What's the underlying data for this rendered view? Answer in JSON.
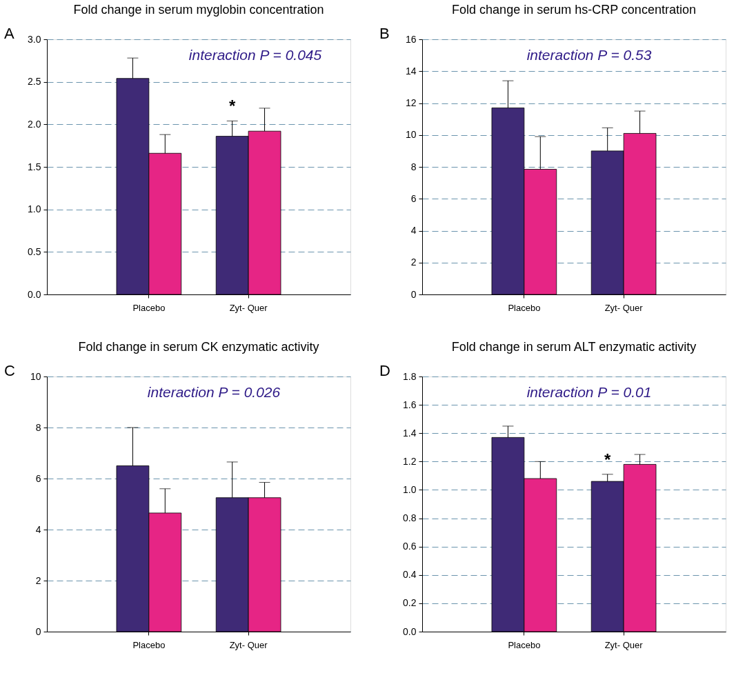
{
  "chart_data": [
    {
      "type": "bar",
      "title": "Fold change in serum myglobin concentration",
      "categories": [
        "Placebo",
        "Zyt- Quer"
      ],
      "series": [
        {
          "color": "#3f2a76",
          "values": [
            2.54,
            1.86
          ],
          "errors": [
            [
              2.54,
              2.78
            ],
            [
              1.86,
              2.04
            ]
          ],
          "value_labels": [
            null,
            "*"
          ]
        },
        {
          "color": "#e62585",
          "values": [
            1.66,
            1.92
          ],
          "errors": [
            [
              1.66,
              1.88
            ],
            [
              1.92,
              2.19
            ]
          ]
        }
      ],
      "ylim": [
        0,
        3
      ],
      "yticks": [
        {
          "value": 0,
          "label": "0.0"
        },
        0.5,
        {
          "value": 1,
          "label": "1.0"
        },
        1.5,
        {
          "value": 2,
          "label": "2.0"
        },
        2.5,
        {
          "value": 3,
          "label": "3.0"
        }
      ],
      "grid": "y",
      "legend": false,
      "annotations": [
        "A",
        "interaction P = 0.045"
      ]
    },
    {
      "type": "bar",
      "title": "Fold change in serum hs-CRP concentration",
      "categories": [
        "Placebo",
        "Zyt- Quer"
      ],
      "series": [
        {
          "color": "#3f2a76",
          "values": [
            11.7,
            9.0
          ],
          "errors": [
            [
              11.7,
              13.4
            ],
            [
              9.0,
              10.45
            ]
          ]
        },
        {
          "color": "#e62585",
          "values": [
            7.85,
            10.1
          ],
          "errors": [
            [
              7.85,
              9.9
            ],
            [
              10.1,
              11.5
            ]
          ]
        }
      ],
      "ylim": [
        0,
        16
      ],
      "yticks": [
        0,
        2,
        4,
        6,
        8,
        10,
        12,
        14,
        16
      ],
      "grid": "y",
      "legend": false,
      "annotations": [
        "B",
        "interaction P = 0.53"
      ]
    },
    {
      "type": "bar",
      "title": "Fold change in serum CK enzymatic activity",
      "categories": [
        "Placebo",
        "Zyt- Quer"
      ],
      "series": [
        {
          "color": "#3f2a76",
          "values": [
            6.5,
            5.25
          ],
          "errors": [
            [
              6.5,
              8.0
            ],
            [
              5.25,
              6.65
            ]
          ]
        },
        {
          "color": "#e62585",
          "values": [
            4.65,
            5.25
          ],
          "errors": [
            [
              4.65,
              5.6
            ],
            [
              5.25,
              5.85
            ]
          ]
        }
      ],
      "ylim": [
        0,
        10
      ],
      "yticks": [
        0,
        2,
        4,
        6,
        8,
        10
      ],
      "grid": "y",
      "legend": false,
      "annotations": [
        "C",
        "interaction P = 0.026"
      ]
    },
    {
      "type": "bar",
      "title": "Fold change in serum ALT enzymatic activity",
      "categories": [
        "Placebo",
        "Zyt- Quer"
      ],
      "series": [
        {
          "color": "#3f2a76",
          "values": [
            1.37,
            1.06
          ],
          "errors": [
            [
              1.37,
              1.45
            ],
            [
              1.06,
              1.11
            ]
          ],
          "value_labels": [
            null,
            "*"
          ]
        },
        {
          "color": "#e62585",
          "values": [
            1.08,
            1.18
          ],
          "errors": [
            [
              1.08,
              1.2
            ],
            [
              1.18,
              1.25
            ]
          ]
        }
      ],
      "ylim": [
        0,
        1.8
      ],
      "yticks": [
        {
          "value": 0,
          "label": "0.0"
        },
        0.2,
        0.4,
        0.6,
        0.8,
        {
          "value": 1,
          "label": "1.0"
        },
        1.2,
        1.4,
        1.6,
        1.8
      ],
      "grid": "y",
      "legend": false,
      "annotations": [
        "D",
        "interaction P = 0.01"
      ]
    }
  ]
}
